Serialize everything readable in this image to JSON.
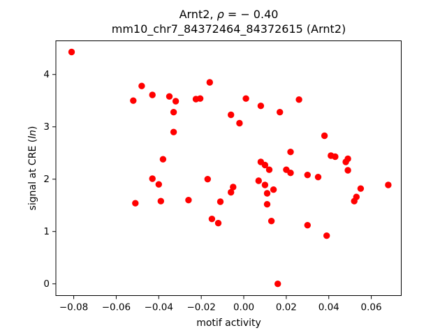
{
  "figure": {
    "title_prefix": "Arnt2, ",
    "title_rho": "ρ",
    "title_suffix": " = − 0.40",
    "subtitle": "mm10_chr7_84372464_84372615 (Arnt2)",
    "xlabel": "motif activity",
    "ylabel_prefix": "signal at CRE (",
    "ylabel_italic": "ln",
    "ylabel_suffix": ")"
  },
  "chart_data": {
    "type": "scatter",
    "title": "Arnt2, ρ = − 0.40",
    "subtitle": "mm10_chr7_84372464_84372615 (Arnt2)",
    "xlabel": "motif activity",
    "ylabel": "signal at CRE (ln)",
    "legend": "none",
    "grid": false,
    "marker": "circle",
    "marker_color": "#ff0000",
    "axis_color": "#000000",
    "xlim": [
      -0.0884,
      0.0741
    ],
    "ylim": [
      -0.224,
      4.643
    ],
    "xticks": [
      -0.08,
      -0.06,
      -0.04,
      -0.02,
      0.0,
      0.02,
      0.04,
      0.06
    ],
    "xtick_labels": [
      "−0.08",
      "−0.06",
      "−0.04",
      "−0.02",
      "0.00",
      "0.02",
      "0.04",
      "0.06"
    ],
    "yticks": [
      0,
      1,
      2,
      3,
      4
    ],
    "ytick_labels": [
      "0",
      "1",
      "2",
      "3",
      "4"
    ],
    "points": [
      [
        -0.081,
        4.43
      ],
      [
        -0.052,
        3.5
      ],
      [
        -0.048,
        3.78
      ],
      [
        -0.043,
        3.61
      ],
      [
        -0.035,
        3.58
      ],
      [
        -0.032,
        3.49
      ],
      [
        -0.033,
        3.28
      ],
      [
        -0.0225,
        3.53
      ],
      [
        -0.0205,
        3.54
      ],
      [
        -0.016,
        3.85
      ],
      [
        -0.006,
        3.23
      ],
      [
        -0.002,
        3.07
      ],
      [
        0.001,
        3.54
      ],
      [
        0.008,
        3.4
      ],
      [
        0.017,
        3.28
      ],
      [
        0.026,
        3.52
      ],
      [
        -0.033,
        2.9
      ],
      [
        -0.038,
        2.38
      ],
      [
        0.038,
        2.83
      ],
      [
        0.022,
        2.52
      ],
      [
        0.041,
        2.45
      ],
      [
        0.043,
        2.43
      ],
      [
        0.049,
        2.39
      ],
      [
        0.048,
        2.33
      ],
      [
        0.049,
        2.17
      ],
      [
        0.008,
        2.33
      ],
      [
        0.01,
        2.27
      ],
      [
        0.012,
        2.18
      ],
      [
        0.02,
        2.18
      ],
      [
        0.022,
        2.12
      ],
      [
        0.03,
        2.08
      ],
      [
        0.035,
        2.04
      ],
      [
        -0.043,
        2.01
      ],
      [
        -0.04,
        1.9
      ],
      [
        -0.017,
        2.0
      ],
      [
        -0.005,
        1.85
      ],
      [
        -0.006,
        1.75
      ],
      [
        0.007,
        1.97
      ],
      [
        0.01,
        1.89
      ],
      [
        0.011,
        1.73
      ],
      [
        0.014,
        1.8
      ],
      [
        0.011,
        1.52
      ],
      [
        -0.051,
        1.54
      ],
      [
        -0.039,
        1.58
      ],
      [
        -0.026,
        1.6
      ],
      [
        -0.011,
        1.57
      ],
      [
        -0.015,
        1.24
      ],
      [
        -0.012,
        1.16
      ],
      [
        0.013,
        1.2
      ],
      [
        0.03,
        1.12
      ],
      [
        0.039,
        0.92
      ],
      [
        0.055,
        1.82
      ],
      [
        0.053,
        1.66
      ],
      [
        0.052,
        1.58
      ],
      [
        0.068,
        1.89
      ],
      [
        0.016,
        0.0
      ]
    ]
  }
}
